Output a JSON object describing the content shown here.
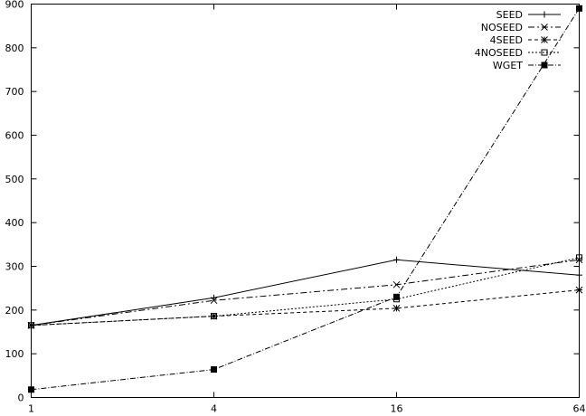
{
  "chart_data": {
    "type": "line",
    "x_scale": "log",
    "x": [
      1,
      4,
      16,
      64
    ],
    "x_tick_labels": [
      "1",
      "4",
      "16",
      "64"
    ],
    "ylim": [
      0,
      900
    ],
    "y_ticks": [
      0,
      100,
      200,
      300,
      400,
      500,
      600,
      700,
      800,
      900
    ],
    "grid": false,
    "legend_position": "top-right",
    "series": [
      {
        "name": "SEED",
        "values": [
          165,
          228,
          315,
          280
        ],
        "dash": "none",
        "marker": "plus"
      },
      {
        "name": "NOSEED",
        "values": [
          165,
          222,
          258,
          315
        ],
        "dash": "7,3,2,3",
        "marker": "cross"
      },
      {
        "name": "4SEED",
        "values": [
          165,
          186,
          204,
          246
        ],
        "dash": "4,3",
        "marker": "star"
      },
      {
        "name": "4NOSEED",
        "values": [
          165,
          186,
          225,
          320
        ],
        "dash": "2,2",
        "marker": "square-open"
      },
      {
        "name": "WGET",
        "values": [
          18,
          64,
          230,
          890
        ],
        "dash": "6,2,1,2",
        "marker": "square-filled"
      }
    ]
  }
}
